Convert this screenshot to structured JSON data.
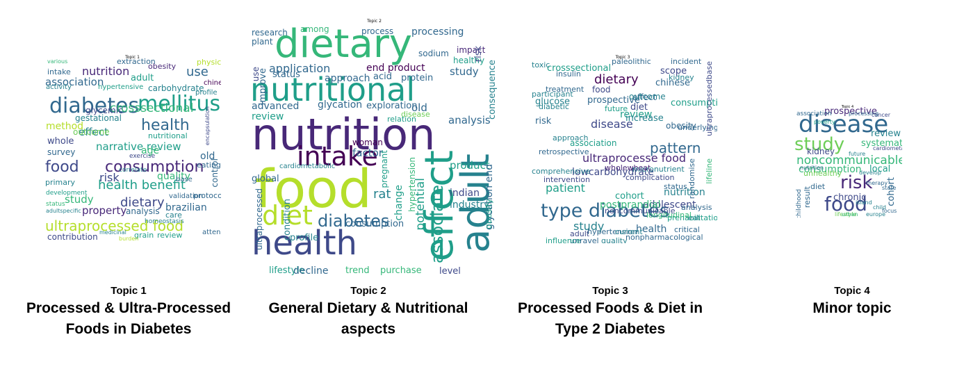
{
  "panels": [
    {
      "cloud_title": "Topic 1",
      "caption_number": "Topic 1",
      "caption_line1": "Processed & Ultra-Processed",
      "caption_line2": "Foods in Diabetes",
      "words": [
        "diabetes",
        "mellitus",
        "food",
        "consumption",
        "ultraprocessed food",
        "health benefit",
        "health",
        "nutrition",
        "association",
        "effect",
        "crosssectional",
        "narrative review",
        "dietary",
        "brazilian",
        "adult",
        "obesity",
        "carbohydrate",
        "nutritional",
        "risk",
        "study",
        "glycemic",
        "gestational",
        "outcome",
        "whole",
        "method",
        "survey",
        "intake",
        "use",
        "physical",
        "extraction",
        "property",
        "analysis",
        "contribution",
        "grain",
        "review",
        "quality",
        "old",
        "eating",
        "protocol",
        "control",
        "encapsulation",
        "chinese",
        "profile",
        "activity",
        "hypertensive",
        "primary",
        "development",
        "status",
        "adultspecific",
        "various",
        "exercise",
        "correlate",
        "age",
        "base",
        "care",
        "validation",
        "homeostasis",
        "attend",
        "medicinal",
        "burden"
      ]
    },
    {
      "cloud_title": "Topic 2",
      "caption_number": "Topic 2",
      "caption_line1": "General Dietary & Nutritional",
      "caption_line2": "aspects",
      "words": [
        "dietary",
        "nutritional",
        "nutrition",
        "food",
        "health",
        "intake",
        "diet",
        "effect",
        "adult",
        "associate",
        "diabetes",
        "application",
        "glycation",
        "advanced",
        "end product",
        "processing",
        "review",
        "improve",
        "study",
        "analysis",
        "healthy",
        "potential",
        "consumption",
        "product",
        "factor",
        "woman",
        "approach",
        "acid",
        "protein",
        "old",
        "exploration",
        "sodium",
        "impact",
        "risk",
        "consequence",
        "research",
        "plant",
        "among",
        "process",
        "use",
        "status",
        "global",
        "condition",
        "ultraprocessed",
        "profile",
        "lifestyle",
        "decline",
        "trend",
        "purchase",
        "level",
        "industry",
        "indian",
        "rat",
        "change",
        "pregnant",
        "hypertension",
        "glycation end",
        "obesity",
        "cardiometabolic",
        "disease",
        "relation"
      ]
    },
    {
      "cloud_title": "Topic 3",
      "caption_number": "Topic 3",
      "caption_line1": "Processed Foods & Diet in",
      "caption_line2": "Type 2 Diabetes",
      "words": [
        "type diabetes",
        "pattern",
        "ultraprocesse food",
        "dietary",
        "disease",
        "patient",
        "study",
        "health",
        "nutrition",
        "adolescent",
        "cohort",
        "review",
        "effect",
        "food",
        "chinese",
        "prospective",
        "risk",
        "glucose",
        "obesity",
        "consumption",
        "diet",
        "association",
        "lowcarbohydrate",
        "crosssectional",
        "scope",
        "kidney",
        "postprandial",
        "adult",
        "increase",
        "outcome",
        "future",
        "complication",
        "intervention",
        "approach",
        "retrospective",
        "comprehensive",
        "insulin",
        "paleolithic",
        "incident",
        "treatment",
        "participant",
        "diabetic",
        "toxic",
        "critical",
        "analysis",
        "eat",
        "micronutrient",
        "wholewheat",
        "noncommunicable",
        "hypertension",
        "unravel",
        "quality",
        "nonpharmacological",
        "influence",
        "current",
        "prehabilitation",
        "longitudinal",
        "underlying",
        "status",
        "randomise",
        "lifeline",
        "ultraprocessedbase"
      ]
    },
    {
      "cloud_title": "Topic 4",
      "caption_number": "Topic 4",
      "caption_line1": "Minor topic",
      "caption_line2": "",
      "words": [
        "disease",
        "study",
        "risk",
        "food",
        "noncommunicable",
        "consumption",
        "prospective",
        "systematic",
        "review",
        "kidney",
        "chronic",
        "cohort",
        "local",
        "unhealthy",
        "diet",
        "result",
        "childhood",
        "association",
        "cancer",
        "cardiometabolic",
        "poverty",
        "processing",
        "future",
        "therapy",
        "nutrition",
        "europe",
        "develop",
        "island",
        "state",
        "focus",
        "lifestyle",
        "child",
        "urban"
      ]
    }
  ],
  "colors": {
    "palette": [
      "#440154",
      "#482878",
      "#3e4989",
      "#31688e",
      "#26828e",
      "#1f9e89",
      "#35b779",
      "#6ece58",
      "#b5de2b",
      "#fde725"
    ]
  }
}
